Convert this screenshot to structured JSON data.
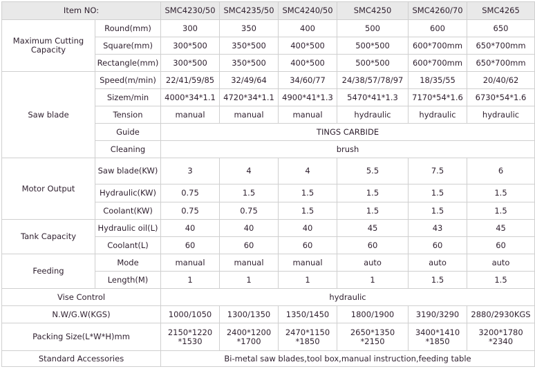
{
  "header": {
    "label": "Item NO:",
    "models": [
      "SMC4230/50",
      "SMC4235/50",
      "SMC4240/50",
      "SMC4250",
      "SMC4260/70",
      "SMC4265"
    ]
  },
  "groups": [
    {
      "label": "Maximum Cutting Capacity",
      "rows": [
        {
          "sub": "Round(mm)",
          "values": [
            "300",
            "350",
            "400",
            "500",
            "600",
            "650"
          ]
        },
        {
          "sub": "Square(mm)",
          "values": [
            "300*500",
            "350*500",
            "400*500",
            "500*500",
            "600*700mm",
            "650*700mm"
          ]
        },
        {
          "sub": "Rectangle(mm)",
          "values": [
            "300*500",
            "350*500",
            "400*500",
            "500*500",
            "600*700mm",
            "650*700mm"
          ]
        }
      ]
    },
    {
      "label": "Saw blade",
      "rows": [
        {
          "sub": "Speed(m/min)",
          "values": [
            "22/41/59/85",
            "32/49/64",
            "34/60/77",
            "24/38/57/78/97",
            "18/35/55",
            "20/40/62"
          ]
        },
        {
          "sub": "Sizem/min",
          "values": [
            "4000*34*1.1",
            "4720*34*1.1",
            "4900*41*1.3",
            "5470*41*1.3",
            "7170*54*1.6",
            "6730*54*1.6"
          ]
        },
        {
          "sub": "Tension",
          "values": [
            "manual",
            "manual",
            "manual",
            "hydraulic",
            "hydraulic",
            "hydraulic"
          ]
        },
        {
          "sub": "Guide",
          "span": "TINGS CARBIDE"
        },
        {
          "sub": "Cleaning",
          "span": "brush"
        }
      ]
    },
    {
      "label": "Motor Output",
      "rows": [
        {
          "sub": "Saw blade(KW)",
          "values": [
            "3",
            "4",
            "4",
            "5.5",
            "7.5",
            "6"
          ]
        },
        {
          "sub": "Hydraulic(KW)",
          "values": [
            "0.75",
            "1.5",
            "1.5",
            "1.5",
            "1.5",
            "1.5"
          ]
        },
        {
          "sub": "Coolant(KW)",
          "values": [
            "0.75",
            "0.75",
            "1.5",
            "1.5",
            "1.5",
            "1.5"
          ]
        }
      ]
    },
    {
      "label": "Tank Capacity",
      "rows": [
        {
          "sub": "Hydraulic oil(L)",
          "values": [
            "40",
            "40",
            "40",
            "45",
            "43",
            "45"
          ]
        },
        {
          "sub": "Coolant(L)",
          "values": [
            "60",
            "60",
            "60",
            "60",
            "60",
            "60"
          ]
        }
      ]
    },
    {
      "label": "Feeding",
      "rows": [
        {
          "sub": "Mode",
          "values": [
            "manual",
            "manual",
            "manual",
            "auto",
            "auto",
            "auto"
          ]
        },
        {
          "sub": "Length(M)",
          "values": [
            "1",
            "1",
            "1",
            "1",
            "1.5",
            "1.5"
          ]
        }
      ]
    }
  ],
  "singles": [
    {
      "label": "Vise Control",
      "span": "hydraulic"
    },
    {
      "label": "N.W/G.W(KGS)",
      "values": [
        "1000/1050",
        "1300/1350",
        "1350/1450",
        "1800/1900",
        "3190/3290",
        "2880/2930KGS"
      ]
    },
    {
      "label": "Packing Size(L*W*H)mm",
      "values": [
        "2150*1220 *1530",
        "2400*1200 *1700",
        "2470*1150 *1850",
        "2650*1350 *2150",
        "3400*1410 *1850",
        "3200*1780 *2340"
      ]
    },
    {
      "label": "Standard Accessories",
      "span": "Bi-metal saw blades,tool box,manual instruction,feeding table"
    }
  ]
}
